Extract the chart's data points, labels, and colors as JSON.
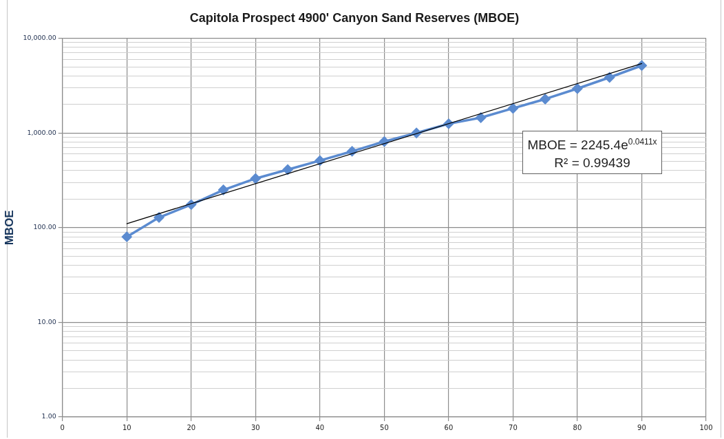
{
  "chart_data": {
    "type": "line",
    "title": "Capitola Prospect 4900' Canyon Sand Reserves (MBOE)",
    "ylabel": "MBOE",
    "x": [
      10,
      15,
      20,
      25,
      30,
      35,
      40,
      45,
      50,
      55,
      60,
      65,
      70,
      75,
      80,
      85,
      90
    ],
    "series": [
      {
        "color": "#5b8bd0",
        "marker": "diamond",
        "values": [
          80,
          128,
          175,
          250,
          330,
          410,
          510,
          640,
          810,
          1000,
          1250,
          1450,
          1820,
          2280,
          2940,
          3860,
          5150
        ]
      },
      {
        "type": "line",
        "color": "#000000",
        "marker": "none",
        "x": [
          10,
          90
        ],
        "values": [
          110,
          5400
        ]
      }
    ],
    "xlim": [
      0,
      100
    ],
    "xticks": [
      0,
      10,
      20,
      30,
      40,
      50,
      60,
      70,
      80,
      90,
      100
    ],
    "log": "y",
    "ylim": [
      1,
      10000
    ],
    "yticks": [
      {
        "value": 1,
        "label": "1.00"
      },
      {
        "value": 2,
        "label": null
      },
      {
        "value": 3,
        "label": null
      },
      {
        "value": 4,
        "label": null
      },
      {
        "value": 5,
        "label": null
      },
      {
        "value": 6,
        "label": null
      },
      {
        "value": 7,
        "label": null
      },
      {
        "value": 8,
        "label": null
      },
      {
        "value": 9,
        "label": null
      },
      {
        "value": 10,
        "label": "10.00"
      },
      {
        "value": 20,
        "label": null
      },
      {
        "value": 30,
        "label": null
      },
      {
        "value": 40,
        "label": null
      },
      {
        "value": 50,
        "label": null
      },
      {
        "value": 60,
        "label": null
      },
      {
        "value": 70,
        "label": null
      },
      {
        "value": 80,
        "label": null
      },
      {
        "value": 90,
        "label": null
      },
      {
        "value": 100,
        "label": "100.00"
      },
      {
        "value": 200,
        "label": null
      },
      {
        "value": 300,
        "label": null
      },
      {
        "value": 400,
        "label": null
      },
      {
        "value": 500,
        "label": null
      },
      {
        "value": 600,
        "label": null
      },
      {
        "value": 700,
        "label": null
      },
      {
        "value": 800,
        "label": null
      },
      {
        "value": 900,
        "label": null
      },
      {
        "value": 1000,
        "label": "1,000.00"
      },
      {
        "value": 2000,
        "label": null
      },
      {
        "value": 3000,
        "label": null
      },
      {
        "value": 4000,
        "label": null
      },
      {
        "value": 5000,
        "label": null
      },
      {
        "value": 6000,
        "label": null
      },
      {
        "value": 7000,
        "label": null
      },
      {
        "value": 8000,
        "label": null
      },
      {
        "value": 9000,
        "label": null
      },
      {
        "value": 10000,
        "label": "10,000.00"
      }
    ],
    "grid": true,
    "annotations": [
      "MBOE = 2245.4e$^{0.0411x}$",
      "R² = 0.99439"
    ]
  }
}
